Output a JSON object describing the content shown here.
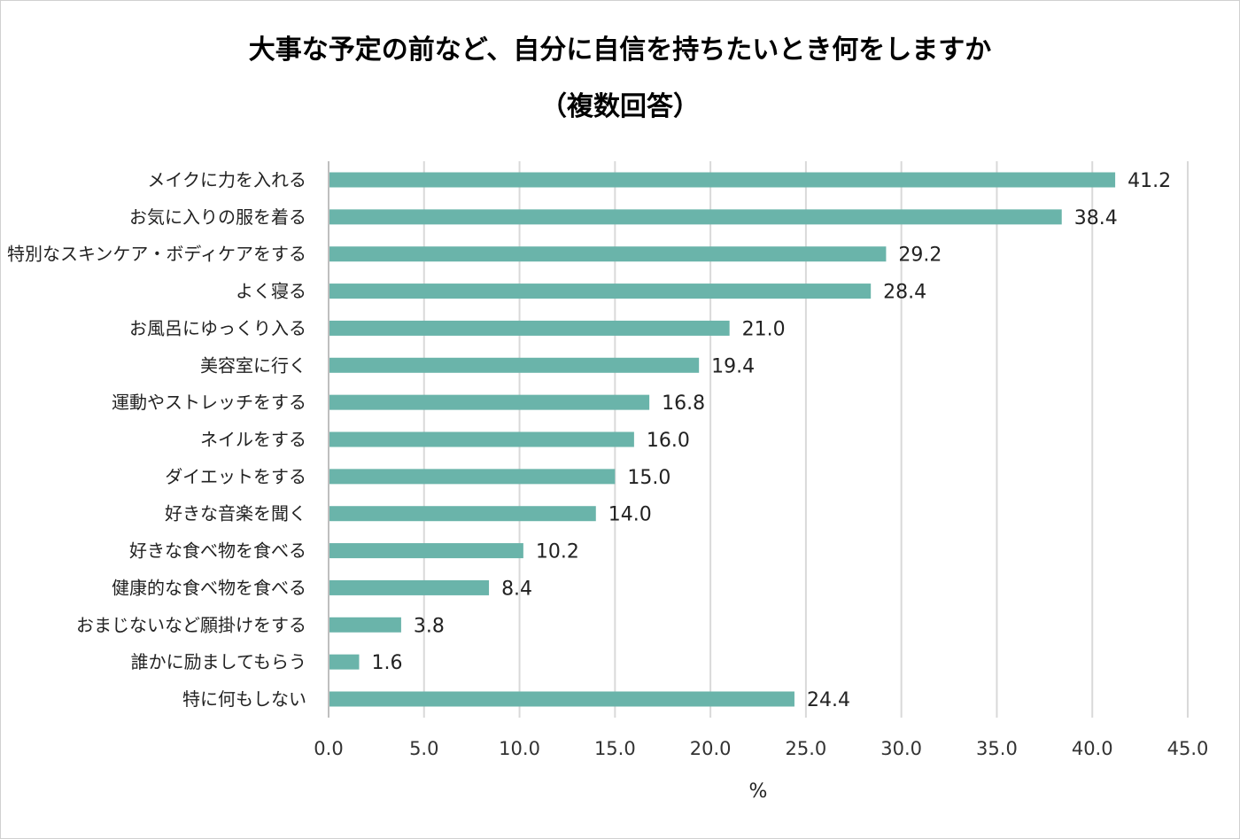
{
  "chart_data": {
    "type": "bar",
    "orientation": "horizontal",
    "title": "大事な予定の前など、自分に自信を持ちたいとき何をしますか",
    "subtitle": "（複数回答）",
    "xlabel": "%",
    "ylabel": "",
    "xlim": [
      0,
      45
    ],
    "x_ticks": [
      "0.0",
      "5.0",
      "10.0",
      "15.0",
      "20.0",
      "25.0",
      "30.0",
      "35.0",
      "40.0",
      "45.0"
    ],
    "grid": "vertical",
    "bar_color": "#6ab4aa",
    "categories": [
      "メイクに力を入れる",
      "お気に入りの服を着る",
      "特別なスキンケア・ボディケアをする",
      "よく寝る",
      "お風呂にゆっくり入る",
      "美容室に行く",
      "運動やストレッチをする",
      "ネイルをする",
      "ダイエットをする",
      "好きな音楽を聞く",
      "好きな食べ物を食べる",
      "健康的な食べ物を食べる",
      "おまじないなど願掛けをする",
      "誰かに励ましてもらう",
      "特に何もしない"
    ],
    "values": [
      41.2,
      38.4,
      29.2,
      28.4,
      21.0,
      19.4,
      16.8,
      16.0,
      15.0,
      14.0,
      10.2,
      8.4,
      3.8,
      1.6,
      24.4
    ],
    "value_labels": [
      "41.2",
      "38.4",
      "29.2",
      "28.4",
      "21.0",
      "19.4",
      "16.8",
      "16.0",
      "15.0",
      "14.0",
      "10.2",
      "8.4",
      "3.8",
      "1.6",
      "24.4"
    ]
  }
}
